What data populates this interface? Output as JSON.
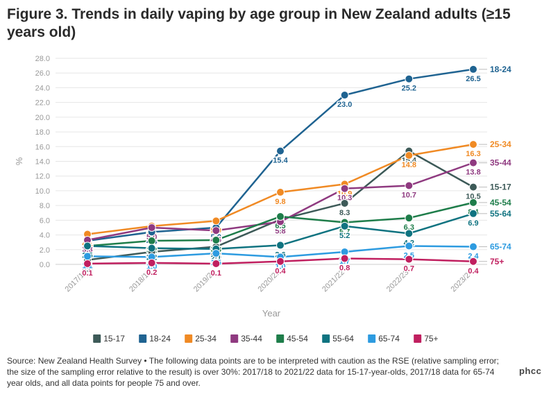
{
  "title": "Figure 3. Trends in daily vaping by age group in New Zealand adults (≥15 years old)",
  "source": "Source: New Zealand Health Survey • The following data points are to be interpreted with caution as the RSE (relative sampling error; the size of the sampling error relative to the result) is over 30%: 2017/18 to 2021/22 data for 15-17-year-olds, 2017/18 data for 65-74 year olds, and all data points for people 75 and over.",
  "logo": "phcc",
  "chart_data": {
    "type": "line",
    "title": "Figure 3. Trends in daily vaping by age group in New Zealand adults (≥15 years old)",
    "xlabel": "Year",
    "ylabel": "%",
    "ylim": [
      0,
      28
    ],
    "yticks": [
      "0.0",
      "2.0",
      "4.0",
      "6.0",
      "8.0",
      "10.0",
      "12.0",
      "14.0",
      "16.0",
      "18.0",
      "20.0",
      "22.0",
      "24.0",
      "26.0",
      "28.0"
    ],
    "grid": true,
    "legend_position": "bottom",
    "x": [
      "2017/18",
      "2018/19",
      "2019/20",
      "2020/21",
      "2021/22",
      "2022/23",
      "2023/24"
    ],
    "series": [
      {
        "name": "15-17",
        "color": "#3d5a58",
        "values": [
          0.6,
          1.7,
          2.4,
          6.1,
          8.3,
          15.4,
          10.5
        ],
        "labels": [
          "0.6",
          "1.7",
          "2.4",
          "6.1",
          "8.3",
          "15.4",
          "10.5"
        ]
      },
      {
        "name": "18-24",
        "color": "#1f6391",
        "values": [
          3.2,
          4.4,
          5.0,
          15.4,
          23.0,
          25.2,
          26.5
        ],
        "labels": [
          "3.2",
          "4.4",
          "5.0",
          "15.4",
          "23.0",
          "25.2",
          "26.5"
        ]
      },
      {
        "name": "25-34",
        "color": "#f08a24",
        "values": [
          4.1,
          5.2,
          5.9,
          9.8,
          10.9,
          14.8,
          16.3
        ],
        "labels": [
          "4.1",
          "5.2",
          "5.9",
          "9.8",
          "10.9",
          "14.8",
          "16.3"
        ]
      },
      {
        "name": "35-44",
        "color": "#8f3a80",
        "values": [
          3.3,
          5.0,
          4.6,
          5.8,
          10.3,
          10.7,
          13.8
        ],
        "labels": [
          "3.3",
          "5.0",
          "4.6",
          "5.8",
          "10.3",
          "10.7",
          "13.8"
        ]
      },
      {
        "name": "45-54",
        "color": "#1e7d4a",
        "values": [
          2.5,
          3.2,
          3.3,
          6.5,
          5.7,
          6.3,
          8.4
        ],
        "labels": [
          "2.5",
          "3.2",
          "3.3",
          "6.5",
          "5.7",
          "6.3",
          "8.4"
        ]
      },
      {
        "name": "55-64",
        "color": "#0f7380",
        "values": [
          2.5,
          2.2,
          2.1,
          2.6,
          5.2,
          4.2,
          6.9
        ],
        "labels": [
          "2.5",
          "2.2",
          "2.1",
          "2.6",
          "5.2",
          "4.2",
          "6.9"
        ]
      },
      {
        "name": "65-74",
        "color": "#2d9be0",
        "values": [
          1.1,
          1.0,
          1.5,
          1.0,
          1.7,
          2.5,
          2.4
        ],
        "labels": [
          "1.1",
          "1.0",
          "1.5",
          "1.0",
          "1.7",
          "2.5",
          "2.4"
        ]
      },
      {
        "name": "75+",
        "color": "#c01f5f",
        "values": [
          0.1,
          0.2,
          0.1,
          0.4,
          0.8,
          0.7,
          0.4
        ],
        "labels": [
          "0.1",
          "0.2",
          "0.1",
          "0.4",
          "0.8",
          "0.7",
          "0.4"
        ]
      }
    ]
  }
}
